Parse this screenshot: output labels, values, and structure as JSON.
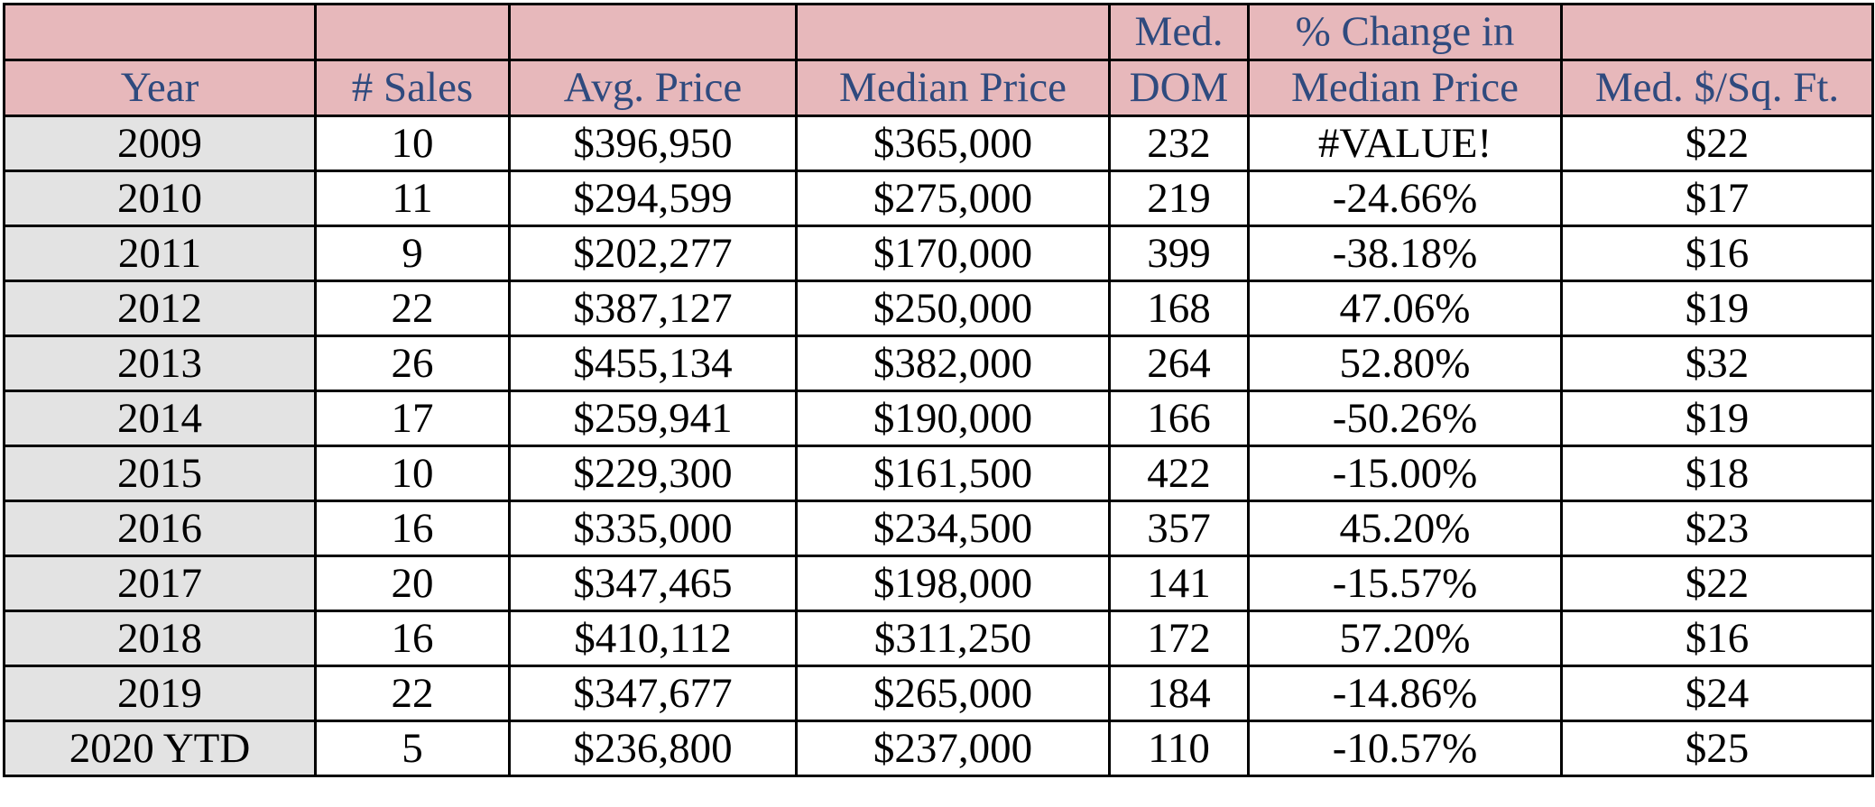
{
  "colors": {
    "header_bg": "#e7b8bb",
    "header_text": "#2f4a7e",
    "year_column_bg": "#e3e3e3",
    "cell_text": "#000000",
    "border": "#000000"
  },
  "chart_data": {
    "type": "table",
    "header_top": [
      "",
      "",
      "",
      "",
      "Med.",
      "% Change in",
      ""
    ],
    "header_bottom": [
      "Year",
      "# Sales",
      "Avg. Price",
      "Median Price",
      "DOM",
      "Median Price",
      "Med. $/Sq. Ft."
    ],
    "rows": [
      [
        "2009",
        "10",
        "$396,950",
        "$365,000",
        "232",
        "#VALUE!",
        "$22"
      ],
      [
        "2010",
        "11",
        "$294,599",
        "$275,000",
        "219",
        "-24.66%",
        "$17"
      ],
      [
        "2011",
        "9",
        "$202,277",
        "$170,000",
        "399",
        "-38.18%",
        "$16"
      ],
      [
        "2012",
        "22",
        "$387,127",
        "$250,000",
        "168",
        "47.06%",
        "$19"
      ],
      [
        "2013",
        "26",
        "$455,134",
        "$382,000",
        "264",
        "52.80%",
        "$32"
      ],
      [
        "2014",
        "17",
        "$259,941",
        "$190,000",
        "166",
        "-50.26%",
        "$19"
      ],
      [
        "2015",
        "10",
        "$229,300",
        "$161,500",
        "422",
        "-15.00%",
        "$18"
      ],
      [
        "2016",
        "16",
        "$335,000",
        "$234,500",
        "357",
        "45.20%",
        "$23"
      ],
      [
        "2017",
        "20",
        "$347,465",
        "$198,000",
        "141",
        "-15.57%",
        "$22"
      ],
      [
        "2018",
        "16",
        "$410,112",
        "$311,250",
        "172",
        "57.20%",
        "$16"
      ],
      [
        "2019",
        "22",
        "$347,677",
        "$265,000",
        "184",
        "-14.86%",
        "$24"
      ],
      [
        "2020 YTD",
        "5",
        "$236,800",
        "$237,000",
        "110",
        "-10.57%",
        "$25"
      ]
    ]
  }
}
